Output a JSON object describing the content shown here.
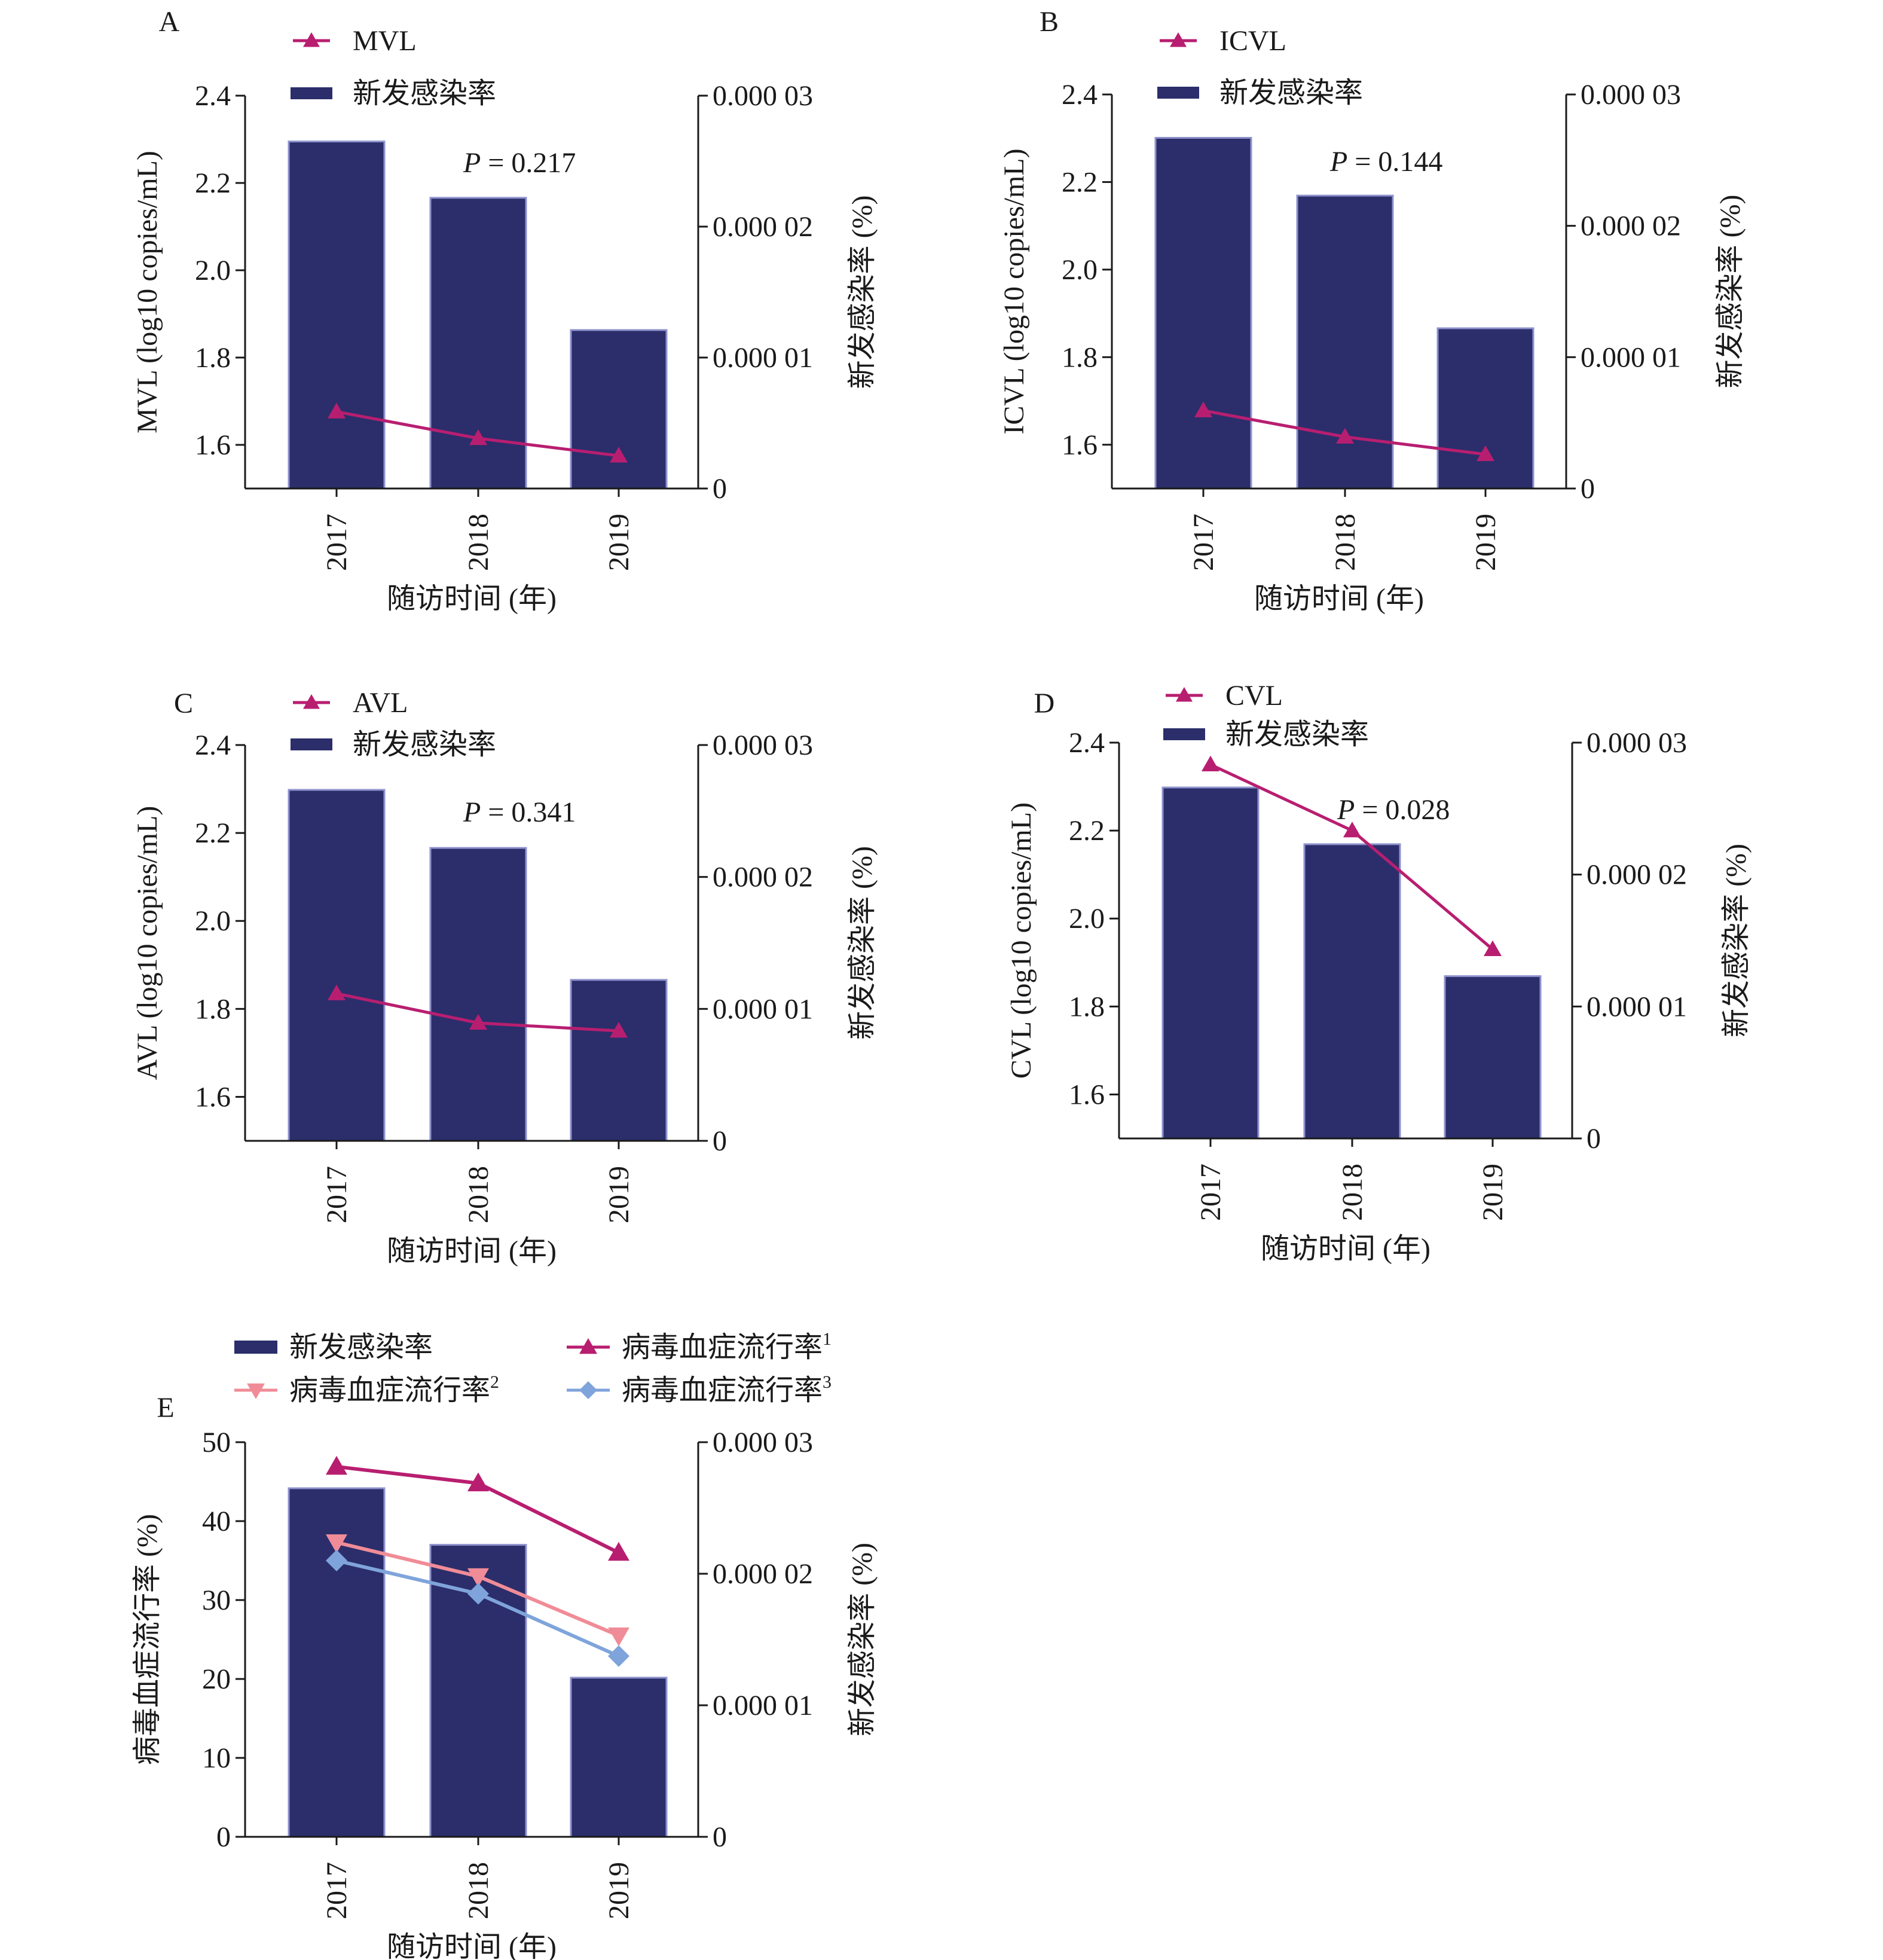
{
  "figure": {
    "colors": {
      "bar": "#2B2E6B",
      "bar_edge": "#8E92CC",
      "series_up": "#B81E70",
      "series_down": "#F08C97",
      "series_diamond": "#7FA4DB",
      "axis": "#1a1a1a"
    }
  },
  "chart_data": [
    {
      "panel": "A",
      "type": "bar",
      "categories": [
        "2017",
        "2018",
        "2019"
      ],
      "series": [
        {
          "name": "新发感染率",
          "axis": "right",
          "kind": "bar",
          "values": [
            2.65e-05,
            2.22e-05,
            1.21e-05
          ]
        },
        {
          "name": "MVL",
          "axis": "left",
          "kind": "line",
          "marker": "triangle-up",
          "values": [
            1.676,
            1.615,
            1.575
          ]
        }
      ],
      "annotation": {
        "label": "P",
        "text": " = 0.217"
      },
      "ylabel_left": "MVL (log10 copies/mL)",
      "ylabel_right": "新发感染率 (%)",
      "xlabel": "随访时间 (年)",
      "ylim_left": [
        1.5,
        2.4
      ],
      "ylim_right": [
        0,
        3e-05
      ],
      "left_ticks": [
        "1.6",
        "1.8",
        "2.0",
        "2.2",
        "2.4"
      ],
      "right_ticks": [
        "0",
        "0.000 01",
        "0.000 02",
        "0.000 03"
      ],
      "legend_position": "top-left"
    },
    {
      "panel": "B",
      "type": "bar",
      "categories": [
        "2017",
        "2018",
        "2019"
      ],
      "series": [
        {
          "name": "新发感染率",
          "axis": "right",
          "kind": "bar",
          "values": [
            2.67e-05,
            2.23e-05,
            1.22e-05
          ]
        },
        {
          "name": "ICVL",
          "axis": "left",
          "kind": "line",
          "marker": "triangle-up",
          "values": [
            1.678,
            1.618,
            1.578
          ]
        }
      ],
      "annotation": {
        "label": "P",
        "text": " = 0.144"
      },
      "ylabel_left": "ICVL (log10 copies/mL)",
      "ylabel_right": "新发感染率 (%)",
      "xlabel": "随访时间 (年)",
      "ylim_left": [
        1.5,
        2.4
      ],
      "ylim_right": [
        0,
        3e-05
      ],
      "left_ticks": [
        "1.6",
        "1.8",
        "2.0",
        "2.2",
        "2.4"
      ],
      "right_ticks": [
        "0",
        "0.000 01",
        "0.000 02",
        "0.000 03"
      ],
      "legend_position": "top-left"
    },
    {
      "panel": "C",
      "type": "bar",
      "categories": [
        "2017",
        "2018",
        "2019"
      ],
      "series": [
        {
          "name": "新发感染率",
          "axis": "right",
          "kind": "bar",
          "values": [
            2.66e-05,
            2.22e-05,
            1.22e-05
          ]
        },
        {
          "name": "AVL",
          "axis": "left",
          "kind": "line",
          "marker": "triangle-up",
          "values": [
            1.835,
            1.768,
            1.75
          ]
        }
      ],
      "annotation": {
        "label": "P",
        "text": " = 0.341"
      },
      "ylabel_left": "AVL (log10 copies/mL)",
      "ylabel_right": "新发感染率 (%)",
      "xlabel": "随访时间 (年)",
      "ylim_left": [
        1.5,
        2.4
      ],
      "ylim_right": [
        0,
        3e-05
      ],
      "left_ticks": [
        "1.6",
        "1.8",
        "2.0",
        "2.2",
        "2.4"
      ],
      "right_ticks": [
        "0",
        "0.000 01",
        "0.000 02",
        "0.000 03"
      ],
      "legend_position": "top-left"
    },
    {
      "panel": "D",
      "type": "bar",
      "categories": [
        "2017",
        "2018",
        "2019"
      ],
      "series": [
        {
          "name": "新发感染率",
          "axis": "right",
          "kind": "bar",
          "values": [
            2.66e-05,
            2.23e-05,
            1.23e-05
          ]
        },
        {
          "name": "CVL",
          "axis": "left",
          "kind": "line",
          "marker": "triangle-up",
          "values": [
            2.35,
            2.2,
            1.93
          ]
        }
      ],
      "annotation": {
        "label": "P",
        "text": " = 0.028"
      },
      "ylabel_left": "CVL (log10 copies/mL)",
      "ylabel_right": "新发感染率 (%)",
      "xlabel": "随访时间 (年)",
      "ylim_left": [
        1.5,
        2.4
      ],
      "ylim_right": [
        0,
        3e-05
      ],
      "left_ticks": [
        "1.6",
        "1.8",
        "2.0",
        "2.2",
        "2.4"
      ],
      "right_ticks": [
        "0",
        "0.000 01",
        "0.000 02",
        "0.000 03"
      ],
      "legend_position": "top-left"
    },
    {
      "panel": "E",
      "type": "bar",
      "categories": [
        "2017",
        "2018",
        "2019"
      ],
      "series": [
        {
          "name": "新发感染率",
          "axis": "right",
          "kind": "bar",
          "values": [
            2.65e-05,
            2.22e-05,
            1.21e-05
          ]
        },
        {
          "name": "病毒血症流行率",
          "sup": "1",
          "axis": "left",
          "kind": "line",
          "marker": "triangle-up",
          "values": [
            46.9,
            44.8,
            36.0
          ]
        },
        {
          "name": "病毒血症流行率",
          "sup": "2",
          "axis": "left",
          "kind": "line",
          "marker": "triangle-down",
          "values": [
            37.3,
            33.0,
            25.5
          ]
        },
        {
          "name": "病毒血症流行率",
          "sup": "3",
          "axis": "left",
          "kind": "line",
          "marker": "diamond",
          "values": [
            35.0,
            30.8,
            22.9
          ]
        }
      ],
      "ylabel_left": "病毒血症流行率 (%)",
      "ylabel_right": "新发感染率 (%)",
      "xlabel": "随访时间 (年)",
      "ylim_left": [
        0,
        50
      ],
      "ylim_right": [
        0,
        3e-05
      ],
      "left_ticks": [
        "0",
        "10",
        "20",
        "30",
        "40",
        "50"
      ],
      "right_ticks": [
        "0",
        "0.000 01",
        "0.000 02",
        "0.000 03"
      ],
      "legend_position": "top"
    }
  ]
}
